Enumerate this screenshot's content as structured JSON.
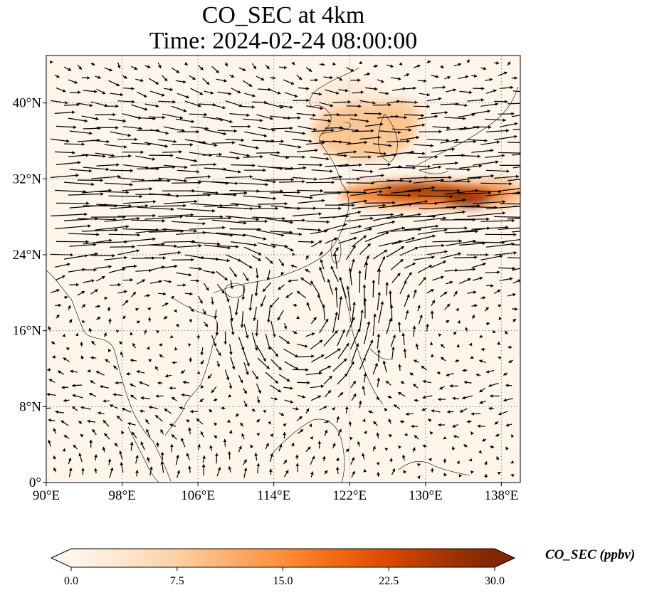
{
  "title": {
    "line1": "CO_SEC at 4km",
    "line2": "Time: 2024-02-24 08:00:00"
  },
  "map": {
    "lon_range": [
      90,
      140
    ],
    "lat_range": [
      0,
      45
    ],
    "x_ticks": [
      {
        "value": 90,
        "label": "90°E"
      },
      {
        "value": 98,
        "label": "98°E"
      },
      {
        "value": 106,
        "label": "106°E"
      },
      {
        "value": 114,
        "label": "114°E"
      },
      {
        "value": 122,
        "label": "122°E"
      },
      {
        "value": 130,
        "label": "130°E"
      },
      {
        "value": 138,
        "label": "138°E"
      }
    ],
    "y_ticks": [
      {
        "value": 0,
        "label": "0°"
      },
      {
        "value": 8,
        "label": "8°N"
      },
      {
        "value": 16,
        "label": "16°N"
      },
      {
        "value": 24,
        "label": "24°N"
      },
      {
        "value": 32,
        "label": "32°N"
      },
      {
        "value": 40,
        "label": "40°N"
      }
    ],
    "gridlines": true,
    "background_color": "#fff5eb",
    "plumes": [
      {
        "lon": 123.5,
        "lat": 37.0,
        "rx": 5.5,
        "ry": 3.0,
        "value": 9
      },
      {
        "lon": 127.0,
        "lat": 38.5,
        "rx": 2.5,
        "ry": 2.0,
        "value": 8
      },
      {
        "lon": 130.0,
        "lat": 30.4,
        "rx": 9.0,
        "ry": 1.4,
        "value": 17
      },
      {
        "lon": 129.5,
        "lat": 30.7,
        "rx": 4.5,
        "ry": 0.8,
        "value": 27
      },
      {
        "lon": 134.5,
        "lat": 30.0,
        "rx": 2.5,
        "ry": 1.0,
        "value": 28
      },
      {
        "lon": 137.5,
        "lat": 30.5,
        "rx": 3.0,
        "ry": 1.5,
        "value": 10
      },
      {
        "lon": 121.5,
        "lat": 40.5,
        "rx": 4.0,
        "ry": 2.0,
        "value": 3
      }
    ]
  },
  "colorbar": {
    "label": "CO_SEC (ppbv)",
    "min": 0,
    "max": 30,
    "ticks": [
      {
        "value": 0,
        "label": "0.0"
      },
      {
        "value": 7.5,
        "label": "7.5"
      },
      {
        "value": 15,
        "label": "15.0"
      },
      {
        "value": 22.5,
        "label": "22.5"
      },
      {
        "value": 30,
        "label": "30.0"
      }
    ],
    "colormap": [
      "#fff5eb",
      "#fee6ce",
      "#fdd0a2",
      "#fdae6b",
      "#fd8d3c",
      "#f16913",
      "#d94801",
      "#a63603",
      "#7f2704"
    ],
    "extend": "both"
  }
}
